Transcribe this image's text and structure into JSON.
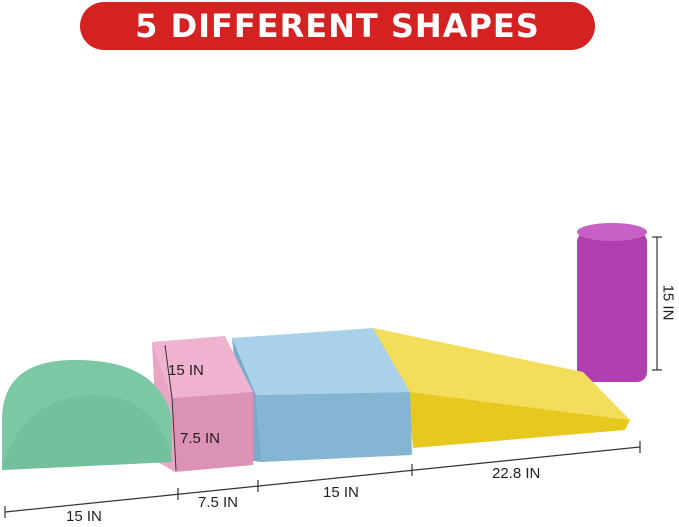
{
  "banner": {
    "title": "5 DIFFERENT SHAPES",
    "color": "#d42222"
  },
  "dimensions": {
    "arch_length": "15 IN",
    "cube_length": "7.5 IN",
    "block_length": "15 IN",
    "ramp_length": "22.8 IN",
    "cube_depth": "15 IN",
    "cube_height": "7.5 IN",
    "cylinder_height": "15 IN"
  },
  "colors": {
    "arch": "#7cc7a4",
    "cube": "#e29bbc",
    "block": "#8fc1dd",
    "ramp": "#f1d93a",
    "cylinder": "#b348b5"
  }
}
